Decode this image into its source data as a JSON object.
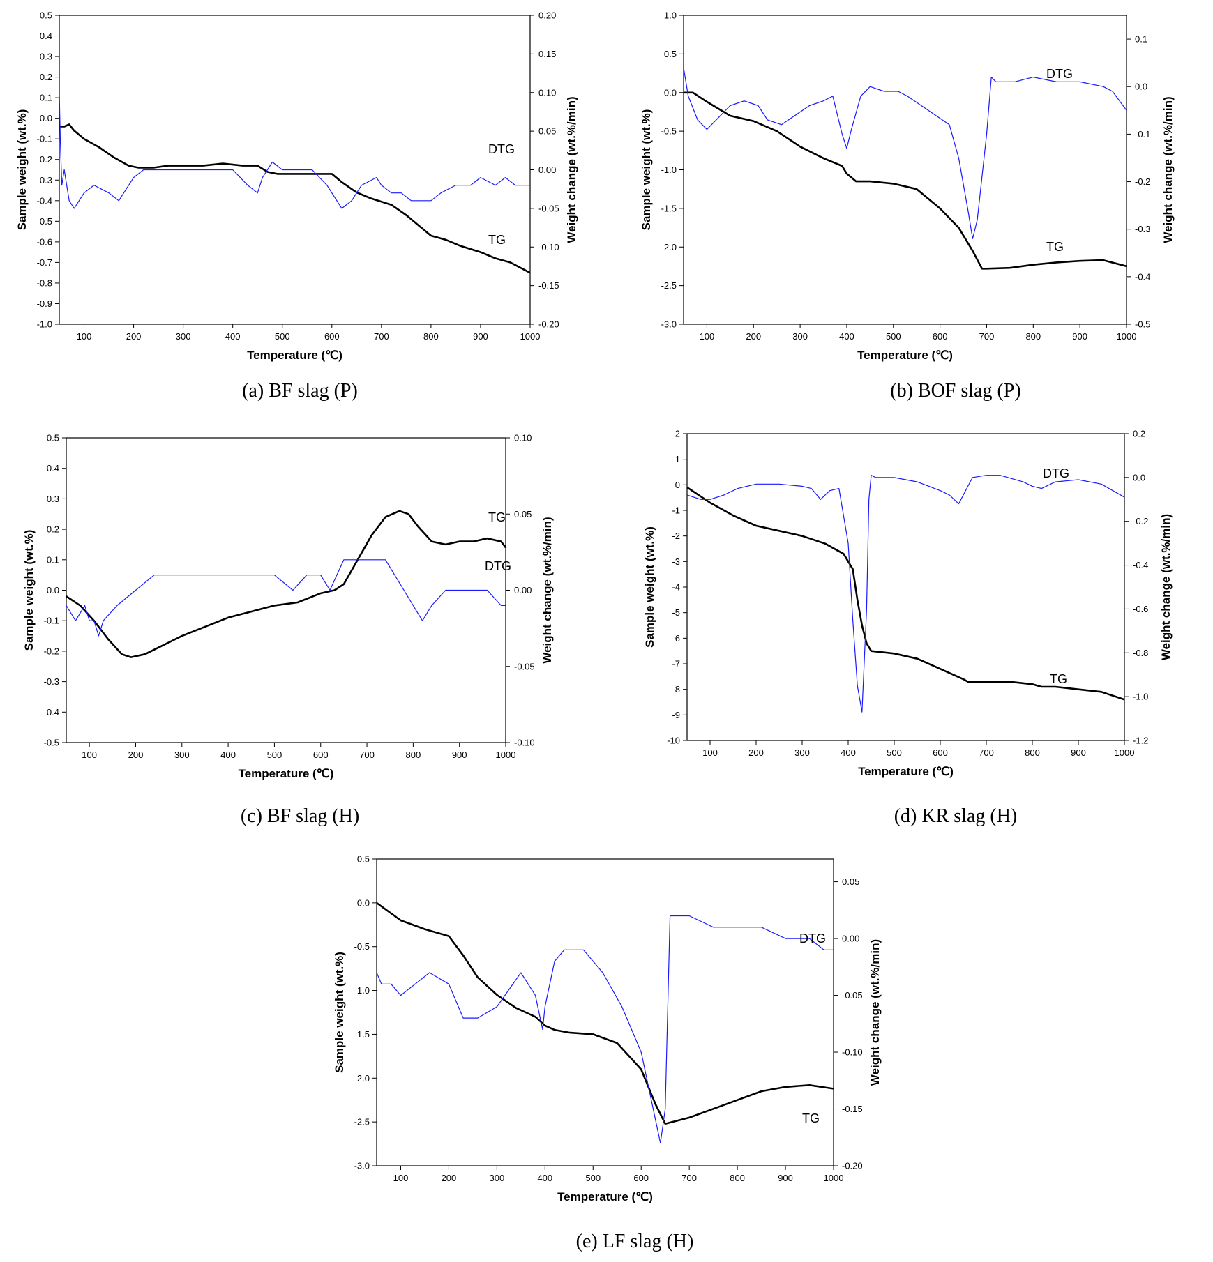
{
  "figure": {
    "captions": [
      "(a) BF slag (P)",
      "(b) BOF slag (P)",
      "(c) BF slag (H)",
      "(d) KR slag (H)",
      "(e) LF slag (H)"
    ]
  },
  "colors": {
    "tg": "#000000",
    "dtg": "#1a1aff",
    "axis": "#000000"
  },
  "chart_data": [
    {
      "type": "line",
      "xlabel": "Temperature (℃)",
      "ylabel": "Sample weight (wt.%)",
      "y2label": "Weight change (wt.%/min)",
      "xlim": [
        50,
        1000
      ],
      "ylim": [
        -1.0,
        0.5
      ],
      "y2lim": [
        -0.2,
        0.2
      ],
      "xticks": [
        "100",
        "200",
        "300",
        "400",
        "500",
        "600",
        "700",
        "800",
        "900",
        "1000"
      ],
      "yticks": [
        "0.5",
        "0.4",
        "0.3",
        "0.2",
        "0.1",
        "0.0",
        "-0.1",
        "-0.2",
        "-0.3",
        "-0.4",
        "-0.5",
        "-0.6",
        "-0.7",
        "-0.8",
        "-0.9",
        "-1.0"
      ],
      "y2ticks": [
        "0.20",
        "0.15",
        "0.10",
        "0.05",
        "0.00",
        "-0.05",
        "-0.10",
        "-0.15",
        "-0.20"
      ],
      "series": [
        {
          "name": "TG",
          "axis": "left",
          "x": [
            50,
            60,
            70,
            80,
            100,
            130,
            160,
            190,
            210,
            240,
            270,
            300,
            340,
            380,
            420,
            450,
            470,
            490,
            520,
            560,
            600,
            620,
            650,
            680,
            720,
            750,
            780,
            800,
            830,
            860,
            900,
            930,
            960,
            1000
          ],
          "values": [
            -0.04,
            -0.04,
            -0.03,
            -0.06,
            -0.1,
            -0.14,
            -0.19,
            -0.23,
            -0.24,
            -0.24,
            -0.23,
            -0.23,
            -0.23,
            -0.22,
            -0.23,
            -0.23,
            -0.26,
            -0.27,
            -0.27,
            -0.27,
            -0.27,
            -0.31,
            -0.36,
            -0.39,
            -0.42,
            -0.47,
            -0.53,
            -0.57,
            -0.59,
            -0.62,
            -0.65,
            -0.68,
            -0.7,
            -0.75
          ]
        },
        {
          "name": "DTG",
          "axis": "right",
          "x": [
            50,
            52,
            55,
            60,
            70,
            80,
            90,
            100,
            120,
            150,
            170,
            180,
            200,
            220,
            250,
            300,
            350,
            380,
            400,
            430,
            450,
            460,
            470,
            480,
            500,
            530,
            560,
            590,
            600,
            620,
            640,
            660,
            690,
            700,
            720,
            740,
            760,
            780,
            800,
            820,
            850,
            880,
            900,
            930,
            950,
            970,
            1000
          ],
          "values": [
            0.1,
            0.04,
            -0.02,
            0.0,
            -0.04,
            -0.05,
            -0.04,
            -0.03,
            -0.02,
            -0.03,
            -0.04,
            -0.03,
            -0.01,
            0.0,
            0.0,
            0.0,
            0.0,
            0.0,
            0.0,
            -0.02,
            -0.03,
            -0.01,
            0.0,
            0.01,
            0.0,
            0.0,
            0.0,
            -0.02,
            -0.03,
            -0.05,
            -0.04,
            -0.02,
            -0.01,
            -0.02,
            -0.03,
            -0.03,
            -0.04,
            -0.04,
            -0.04,
            -0.03,
            -0.02,
            -0.02,
            -0.01,
            -0.02,
            -0.01,
            -0.02,
            -0.02
          ]
        }
      ]
    },
    {
      "type": "line",
      "xlabel": "Temperature (℃)",
      "ylabel": "Sample weight (wt.%)",
      "y2label": "Weight change (wt.%/min)",
      "xlim": [
        50,
        1000
      ],
      "ylim": [
        -3.0,
        1.0
      ],
      "y2lim": [
        -0.5,
        0.15
      ],
      "xticks": [
        "100",
        "200",
        "300",
        "400",
        "500",
        "600",
        "700",
        "800",
        "900",
        "1000"
      ],
      "yticks": [
        "1.0",
        "0.5",
        "0.0",
        "-0.5",
        "-1.0",
        "-1.5",
        "-2.0",
        "-2.5",
        "-3.0"
      ],
      "y2ticks": [
        "0.1",
        "0.0",
        "-0.1",
        "-0.2",
        "-0.3",
        "-0.4",
        "-0.5"
      ],
      "y2tickvals": [
        0.1,
        0.0,
        -0.1,
        -0.2,
        -0.3,
        -0.4,
        -0.5
      ],
      "series": [
        {
          "name": "TG",
          "axis": "left",
          "x": [
            50,
            70,
            100,
            150,
            200,
            250,
            300,
            350,
            390,
            400,
            420,
            450,
            500,
            550,
            600,
            640,
            670,
            690,
            700,
            750,
            800,
            850,
            900,
            950,
            1000
          ],
          "values": [
            0.0,
            0.0,
            -0.12,
            -0.3,
            -0.37,
            -0.5,
            -0.7,
            -0.85,
            -0.95,
            -1.05,
            -1.15,
            -1.15,
            -1.18,
            -1.25,
            -1.5,
            -1.75,
            -2.05,
            -2.28,
            -2.28,
            -2.27,
            -2.23,
            -2.2,
            -2.18,
            -2.17,
            -2.25
          ]
        },
        {
          "name": "DTG",
          "axis": "right",
          "x": [
            50,
            60,
            80,
            100,
            120,
            150,
            180,
            210,
            230,
            260,
            290,
            320,
            350,
            370,
            390,
            400,
            410,
            430,
            450,
            480,
            510,
            530,
            560,
            590,
            620,
            640,
            660,
            670,
            680,
            700,
            710,
            720,
            760,
            800,
            850,
            900,
            950,
            970,
            1000
          ],
          "values": [
            0.04,
            -0.02,
            -0.07,
            -0.09,
            -0.07,
            -0.04,
            -0.03,
            -0.04,
            -0.07,
            -0.08,
            -0.06,
            -0.04,
            -0.03,
            -0.02,
            -0.1,
            -0.13,
            -0.09,
            -0.02,
            0.0,
            -0.01,
            -0.01,
            -0.02,
            -0.04,
            -0.06,
            -0.08,
            -0.15,
            -0.26,
            -0.32,
            -0.28,
            -0.1,
            0.02,
            0.01,
            0.01,
            0.02,
            0.01,
            0.01,
            0.0,
            -0.01,
            -0.05
          ]
        }
      ]
    },
    {
      "type": "line",
      "xlabel": "Temperature (℃)",
      "ylabel": "Sample weight (wt.%)",
      "y2label": "Weight change (wt.%/min)",
      "xlim": [
        50,
        1000
      ],
      "ylim": [
        -0.5,
        0.5
      ],
      "y2lim": [
        -0.1,
        0.1
      ],
      "xticks": [
        "100",
        "200",
        "300",
        "400",
        "500",
        "600",
        "700",
        "800",
        "900",
        "1000"
      ],
      "yticks": [
        "0.5",
        "0.4",
        "0.3",
        "0.2",
        "0.1",
        "0.0",
        "-0.1",
        "-0.2",
        "-0.3",
        "-0.4",
        "-0.5"
      ],
      "y2ticks": [
        "0.10",
        "0.05",
        "0.00",
        "-0.05",
        "-0.10"
      ],
      "series": [
        {
          "name": "TG",
          "axis": "left",
          "x": [
            50,
            80,
            110,
            140,
            170,
            190,
            220,
            260,
            300,
            350,
            400,
            450,
            500,
            550,
            600,
            630,
            650,
            680,
            710,
            740,
            770,
            790,
            810,
            840,
            870,
            900,
            930,
            960,
            990,
            1000
          ],
          "values": [
            -0.02,
            -0.05,
            -0.1,
            -0.16,
            -0.21,
            -0.22,
            -0.21,
            -0.18,
            -0.15,
            -0.12,
            -0.09,
            -0.07,
            -0.05,
            -0.04,
            -0.01,
            0.0,
            0.02,
            0.1,
            0.18,
            0.24,
            0.26,
            0.25,
            0.21,
            0.16,
            0.15,
            0.16,
            0.16,
            0.17,
            0.16,
            0.14
          ]
        },
        {
          "name": "DTG",
          "axis": "right",
          "x": [
            50,
            70,
            90,
            100,
            110,
            120,
            130,
            160,
            200,
            240,
            280,
            320,
            360,
            400,
            450,
            500,
            540,
            570,
            600,
            620,
            650,
            670,
            690,
            720,
            740,
            760,
            780,
            800,
            820,
            840,
            870,
            900,
            930,
            960,
            990,
            1000
          ],
          "values": [
            -0.01,
            -0.02,
            -0.01,
            -0.02,
            -0.02,
            -0.03,
            -0.02,
            -0.01,
            0.0,
            0.01,
            0.01,
            0.01,
            0.01,
            0.01,
            0.01,
            0.01,
            0.0,
            0.01,
            0.01,
            0.0,
            0.02,
            0.02,
            0.02,
            0.02,
            0.02,
            0.01,
            0.0,
            -0.01,
            -0.02,
            -0.01,
            0.0,
            0.0,
            0.0,
            0.0,
            -0.01,
            -0.01
          ]
        }
      ]
    },
    {
      "type": "line",
      "xlabel": "Temperature (℃)",
      "ylabel": "Sample weight (wt.%)",
      "y2label": "Weight change (wt.%/min)",
      "xlim": [
        50,
        1000
      ],
      "ylim": [
        -10,
        2
      ],
      "y2lim": [
        -1.2,
        0.2
      ],
      "xticks": [
        "100",
        "200",
        "300",
        "400",
        "500",
        "600",
        "700",
        "800",
        "900",
        "1000"
      ],
      "yticks": [
        "2",
        "1",
        "0",
        "-1",
        "-2",
        "-3",
        "-4",
        "-5",
        "-6",
        "-7",
        "-8",
        "-9",
        "-10"
      ],
      "y2ticks": [
        "0.2",
        "0.0",
        "-0.2",
        "-0.4",
        "-0.6",
        "-0.8",
        "-1.0",
        "-1.2"
      ],
      "series": [
        {
          "name": "TG",
          "axis": "left",
          "x": [
            50,
            100,
            150,
            200,
            250,
            300,
            350,
            390,
            410,
            420,
            430,
            440,
            450,
            500,
            550,
            600,
            650,
            660,
            700,
            750,
            800,
            820,
            850,
            900,
            950,
            1000
          ],
          "values": [
            -0.1,
            -0.7,
            -1.2,
            -1.6,
            -1.8,
            -2.0,
            -2.3,
            -2.7,
            -3.3,
            -4.5,
            -5.5,
            -6.2,
            -6.5,
            -6.6,
            -6.8,
            -7.2,
            -7.6,
            -7.7,
            -7.7,
            -7.7,
            -7.8,
            -7.9,
            -7.9,
            -8.0,
            -8.1,
            -8.4
          ]
        },
        {
          "name": "DTG",
          "axis": "right",
          "x": [
            50,
            80,
            100,
            130,
            160,
            200,
            250,
            300,
            320,
            340,
            360,
            380,
            400,
            410,
            420,
            430,
            440,
            445,
            450,
            460,
            500,
            550,
            600,
            620,
            640,
            650,
            670,
            700,
            730,
            780,
            800,
            820,
            850,
            900,
            950,
            1000
          ],
          "values": [
            -0.08,
            -0.1,
            -0.1,
            -0.08,
            -0.05,
            -0.03,
            -0.03,
            -0.04,
            -0.05,
            -0.1,
            -0.06,
            -0.05,
            -0.3,
            -0.65,
            -0.95,
            -1.07,
            -0.6,
            -0.1,
            0.01,
            0.0,
            0.0,
            -0.02,
            -0.06,
            -0.08,
            -0.12,
            -0.08,
            0.0,
            0.01,
            0.01,
            -0.02,
            -0.04,
            -0.05,
            -0.02,
            -0.01,
            -0.03,
            -0.09
          ]
        }
      ]
    },
    {
      "type": "line",
      "xlabel": "Temperature (℃)",
      "ylabel": "Sample weight (wt.%)",
      "y2label": "Weight change (wt.%/min)",
      "xlim": [
        50,
        1000
      ],
      "ylim": [
        -3.0,
        0.5
      ],
      "y2lim": [
        -0.2,
        0.07
      ],
      "xticks": [
        "100",
        "200",
        "300",
        "400",
        "500",
        "600",
        "700",
        "800",
        "900",
        "1000"
      ],
      "yticks": [
        "0.5",
        "0.0",
        "-0.5",
        "-1.0",
        "-1.5",
        "-2.0",
        "-2.5",
        "-3.0"
      ],
      "y2ticks": [
        "0.05",
        "0.00",
        "-0.05",
        "-0.10",
        "-0.15",
        "-0.20"
      ],
      "y2tickvals": [
        0.05,
        0.0,
        -0.05,
        -0.1,
        -0.15,
        -0.2
      ],
      "series": [
        {
          "name": "TG",
          "axis": "left",
          "x": [
            50,
            100,
            150,
            200,
            230,
            260,
            300,
            340,
            380,
            400,
            420,
            450,
            500,
            550,
            600,
            630,
            650,
            700,
            750,
            800,
            850,
            900,
            950,
            1000
          ],
          "values": [
            0.0,
            -0.2,
            -0.3,
            -0.38,
            -0.6,
            -0.85,
            -1.05,
            -1.2,
            -1.3,
            -1.4,
            -1.45,
            -1.48,
            -1.5,
            -1.6,
            -1.9,
            -2.3,
            -2.52,
            -2.45,
            -2.35,
            -2.25,
            -2.15,
            -2.1,
            -2.08,
            -2.12
          ]
        },
        {
          "name": "DTG",
          "axis": "right",
          "x": [
            50,
            60,
            80,
            100,
            130,
            160,
            200,
            230,
            240,
            260,
            300,
            350,
            380,
            395,
            400,
            420,
            440,
            480,
            520,
            560,
            600,
            620,
            640,
            650,
            660,
            680,
            700,
            750,
            800,
            850,
            900,
            950,
            980,
            1000
          ],
          "values": [
            -0.03,
            -0.04,
            -0.04,
            -0.05,
            -0.04,
            -0.03,
            -0.04,
            -0.07,
            -0.07,
            -0.07,
            -0.06,
            -0.03,
            -0.05,
            -0.08,
            -0.06,
            -0.02,
            -0.01,
            -0.01,
            -0.03,
            -0.06,
            -0.1,
            -0.14,
            -0.18,
            -0.15,
            0.02,
            0.02,
            0.02,
            0.01,
            0.01,
            0.01,
            0.0,
            0.0,
            -0.01,
            -0.01
          ]
        }
      ]
    }
  ]
}
